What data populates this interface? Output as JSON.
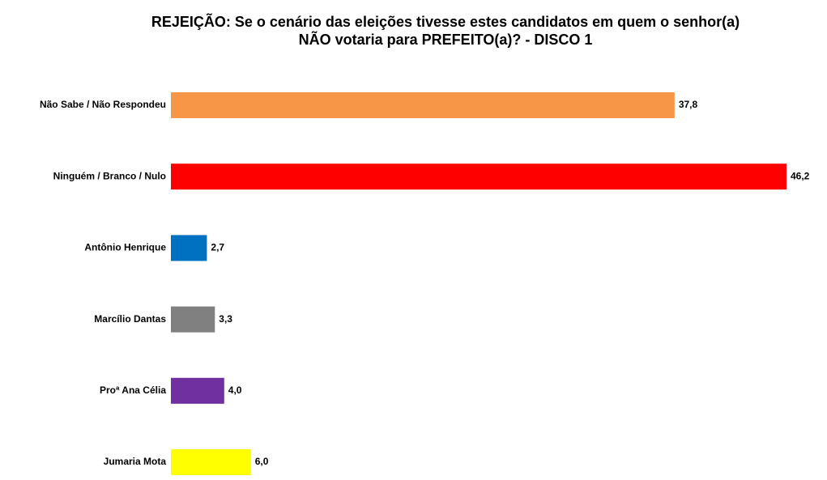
{
  "chart_data": {
    "type": "bar",
    "orientation": "horizontal",
    "title": "REJEIÇÃO: Se o cenário das eleições tivesse estes candidatos em quem o senhor(a) NÃO votaria para PREFEITO(a)? - DISCO 1",
    "categories": [
      "Não Sabe / Não Respondeu",
      "Ninguém / Branco / Nulo",
      "Antônio Henrique",
      "Marcílio Dantas",
      "Proª Ana Célia",
      "Jumaria Mota"
    ],
    "values": [
      37.8,
      46.2,
      2.7,
      3.3,
      4.0,
      6.0
    ],
    "value_labels": [
      "37,8",
      "46,2",
      "2,7",
      "3,3",
      "4,0",
      "6,0"
    ],
    "colors": [
      "#f79646",
      "#ff0000",
      "#0070c0",
      "#808080",
      "#7030a0",
      "#ffff00"
    ]
  }
}
